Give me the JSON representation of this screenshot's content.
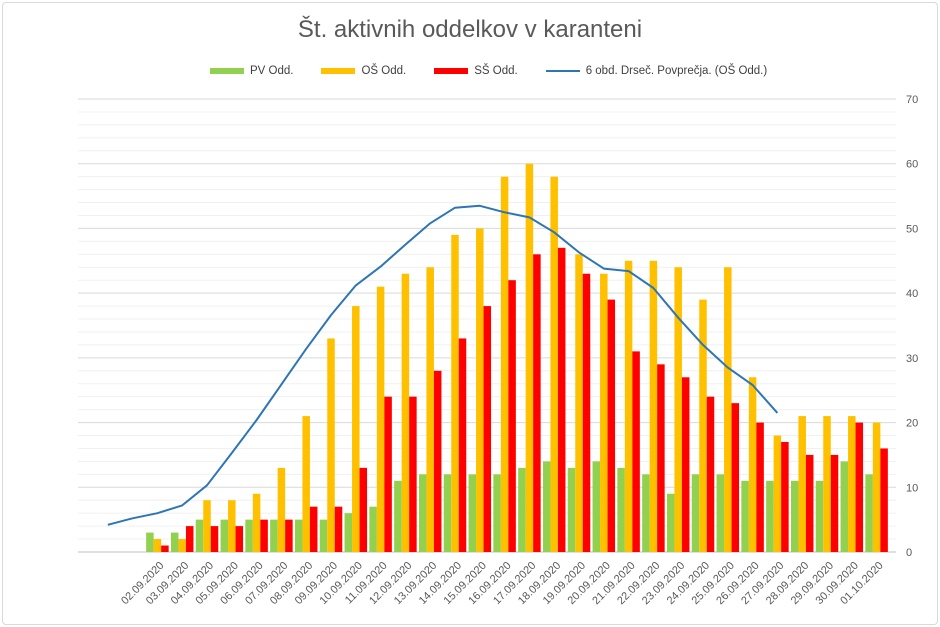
{
  "chart_data": {
    "type": "bar",
    "title": "Št. aktivnih oddelkov v karanteni",
    "categories": [
      "02.09.2020",
      "03.09.2020",
      "04.09.2020",
      "05.09.2020",
      "06.09.2020",
      "07.09.2020",
      "08.09.2020",
      "09.09.2020",
      "10.09.2020",
      "11.09.2020",
      "12.09.2020",
      "13.09.2020",
      "14.09.2020",
      "15.09.2020",
      "16.09.2020",
      "17.09.2020",
      "18.09.2020",
      "19.09.2020",
      "20.09.2020",
      "21.09.2020",
      "22.09.2020",
      "23.09.2020",
      "24.09.2020",
      "25.09.2020",
      "26.09.2020",
      "27.09.2020",
      "28.09.2020",
      "29.09.2020",
      "30.09.2020",
      "01.10.2020"
    ],
    "series": [
      {
        "name": "PV Odd.",
        "color": "#92d050",
        "values": [
          3,
          3,
          5,
          5,
          5,
          5,
          5,
          5,
          6,
          7,
          11,
          12,
          12,
          12,
          12,
          13,
          14,
          13,
          14,
          13,
          12,
          9,
          12,
          12,
          11,
          11,
          11,
          11,
          14,
          12
        ]
      },
      {
        "name": "OŠ Odd.",
        "color": "#ffc000",
        "values": [
          2,
          2,
          8,
          8,
          9,
          13,
          21,
          33,
          38,
          41,
          43,
          44,
          49,
          50,
          58,
          60,
          58,
          46,
          43,
          45,
          45,
          44,
          39,
          44,
          27,
          18,
          21,
          21,
          21,
          20
        ]
      },
      {
        "name": "SŠ Odd.",
        "color": "#ff0000",
        "values": [
          1,
          4,
          4,
          4,
          5,
          5,
          7,
          7,
          13,
          24,
          24,
          28,
          33,
          38,
          42,
          46,
          47,
          43,
          39,
          31,
          29,
          27,
          24,
          23,
          20,
          17,
          15,
          15,
          20,
          16
        ]
      }
    ],
    "trend": {
      "name": "6 obd. Drseč. Povprečja. (OŠ Odd.)",
      "color": "#2e75b6",
      "values": [
        4.2,
        5.2,
        6.0,
        7.2,
        10.3,
        15.3,
        20.4,
        25.9,
        31.4,
        36.6,
        41.2,
        44.1,
        47.5,
        50.8,
        53.2,
        53.5,
        52.5,
        51.7,
        49.4,
        46.3,
        43.8,
        43.4,
        40.8,
        36.2,
        32.0,
        28.5,
        25.8,
        21.5
      ]
    },
    "ylim": [
      0,
      70
    ],
    "yticks": [
      0,
      10,
      20,
      30,
      40,
      50,
      60,
      70
    ],
    "legend_position": "top",
    "grid": true
  }
}
